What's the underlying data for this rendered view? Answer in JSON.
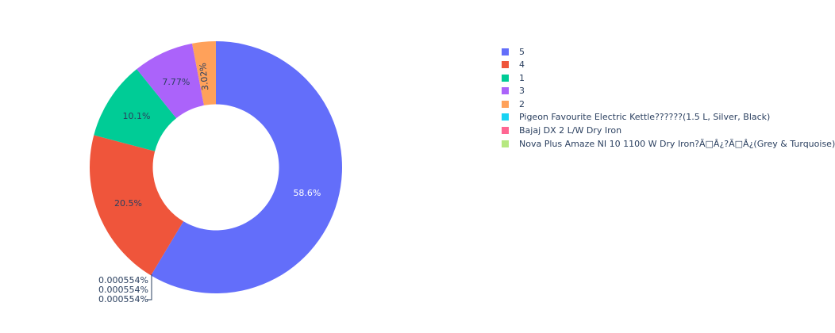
{
  "chart_data": {
    "type": "pie",
    "hole": 0.5,
    "labels": [
      "5",
      "4",
      "1",
      "3",
      "2",
      "Pigeon Favourite Electric Kettle??????(1.5 L, Silver, Black)",
      "Bajaj DX 2 L/W Dry Iron",
      "Nova Plus Amaze NI 10 1100 W Dry Iron?Ã□Â¿?Ã□Â¿(Grey & Turquoise)"
    ],
    "values": [
      58.6,
      20.5,
      10.1,
      7.77,
      3.02,
      0.000554,
      0.000554,
      0.000554
    ],
    "text_labels": [
      "58.6%",
      "20.5%",
      "10.1%",
      "7.77%",
      "3.02%",
      "0.000554%",
      "0.000554%",
      "0.000554%"
    ],
    "colors": [
      "#636efa",
      "#ef553b",
      "#00cc96",
      "#ab63fa",
      "#ffa15a",
      "#19d3f3",
      "#ff6692",
      "#b6e880"
    ],
    "legend_position": "right"
  }
}
